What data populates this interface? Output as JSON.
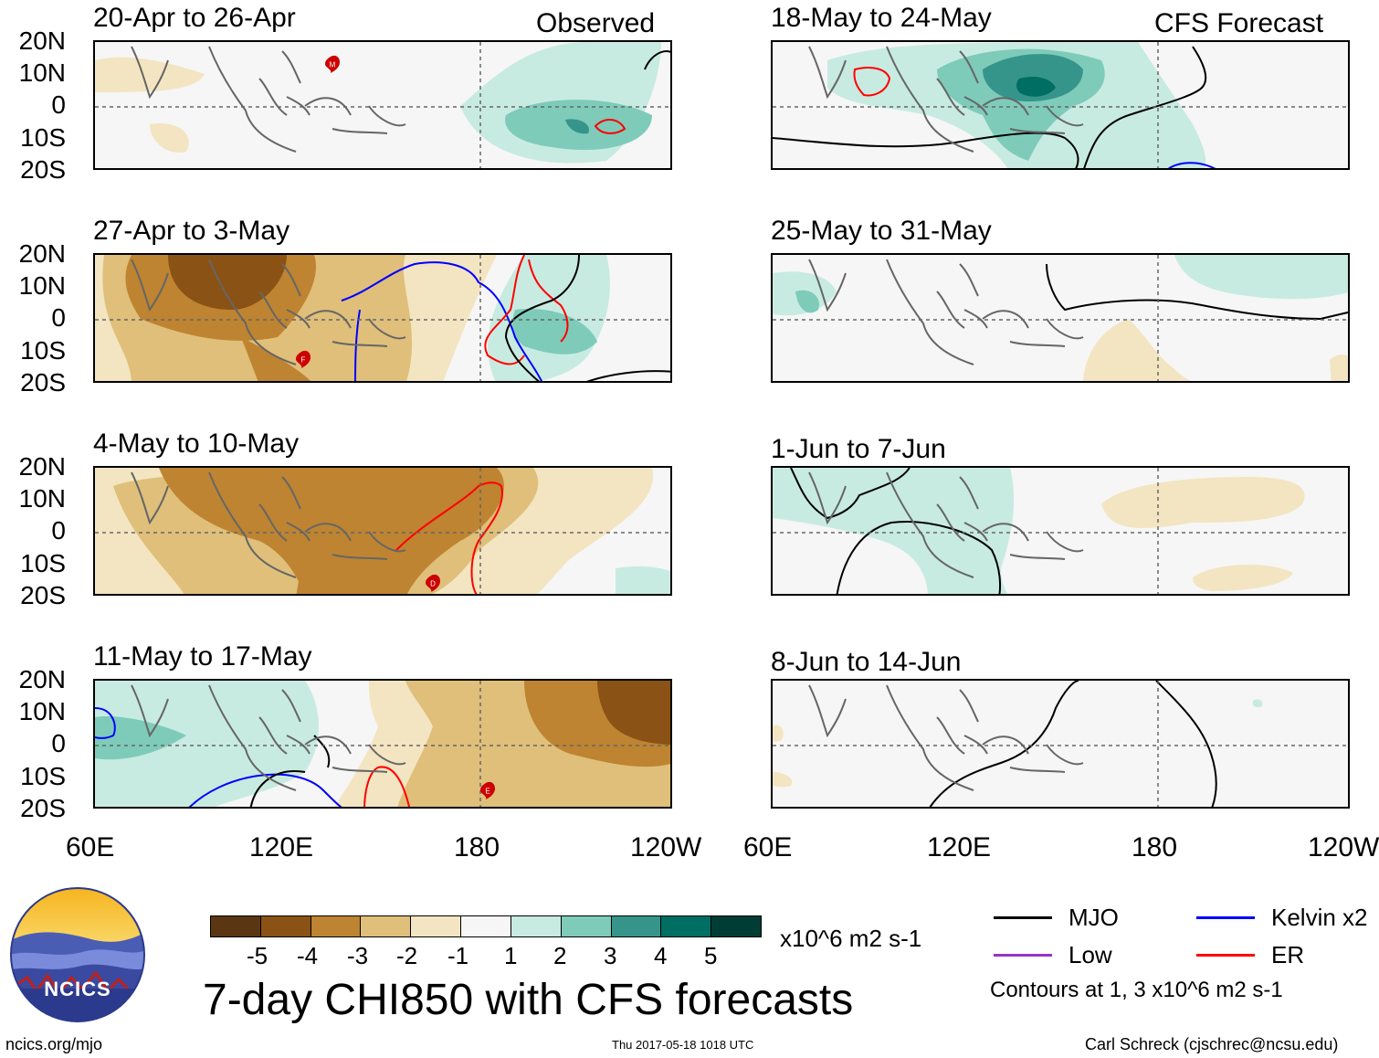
{
  "panels_observed": [
    {
      "title": "20-Apr to 26-Apr",
      "tag": "Observed"
    },
    {
      "title": "27-Apr to 3-May",
      "tag": ""
    },
    {
      "title": "4-May to 10-May",
      "tag": ""
    },
    {
      "title": "11-May to 17-May",
      "tag": ""
    }
  ],
  "panels_forecast": [
    {
      "title": "18-May to 24-May",
      "tag": "CFS Forecast"
    },
    {
      "title": "25-May to 31-May",
      "tag": ""
    },
    {
      "title": "1-Jun to 7-Jun",
      "tag": ""
    },
    {
      "title": "8-Jun to 14-Jun",
      "tag": ""
    }
  ],
  "lat_labels": [
    "20N",
    "10N",
    "0",
    "10S",
    "20S"
  ],
  "lon_labels_left": [
    "60E",
    "120E",
    "180",
    "120W"
  ],
  "lon_labels_right": [
    "60E",
    "120E",
    "180",
    "120W"
  ],
  "colorbar": {
    "colors": [
      "#5a3712",
      "#8a5214",
      "#be8431",
      "#dfbf7a",
      "#f3e5c1",
      "#f6f6f6",
      "#c8ebe1",
      "#7ecbb9",
      "#36958a",
      "#006e63",
      "#013d34"
    ],
    "tick_labels": [
      "-5",
      "-4",
      "-3",
      "-2",
      "-1",
      "1",
      "2",
      "3",
      "4",
      "5"
    ],
    "units": "x10^6 m2 s-1"
  },
  "main_title": "7-day CHI850 with CFS forecasts",
  "legend": {
    "items": [
      {
        "label": "MJO",
        "color": "#000000"
      },
      {
        "label": "Kelvin x2",
        "color": "#0000ff"
      },
      {
        "label": "Low",
        "color": "#9932cc"
      },
      {
        "label": "ER",
        "color": "#ff0000"
      }
    ],
    "note": "Contours at 1, 3 x10^6 m2 s-1"
  },
  "logo_text": "NCICS",
  "footer": {
    "url": "ncics.org/mjo",
    "timestamp": "Thu 2017-05-18 1018 UTC",
    "credit": "Carl Schreck (cjschrec@ncsu.edu)"
  },
  "storm_markers": [
    "M",
    "F",
    "D",
    "E"
  ]
}
